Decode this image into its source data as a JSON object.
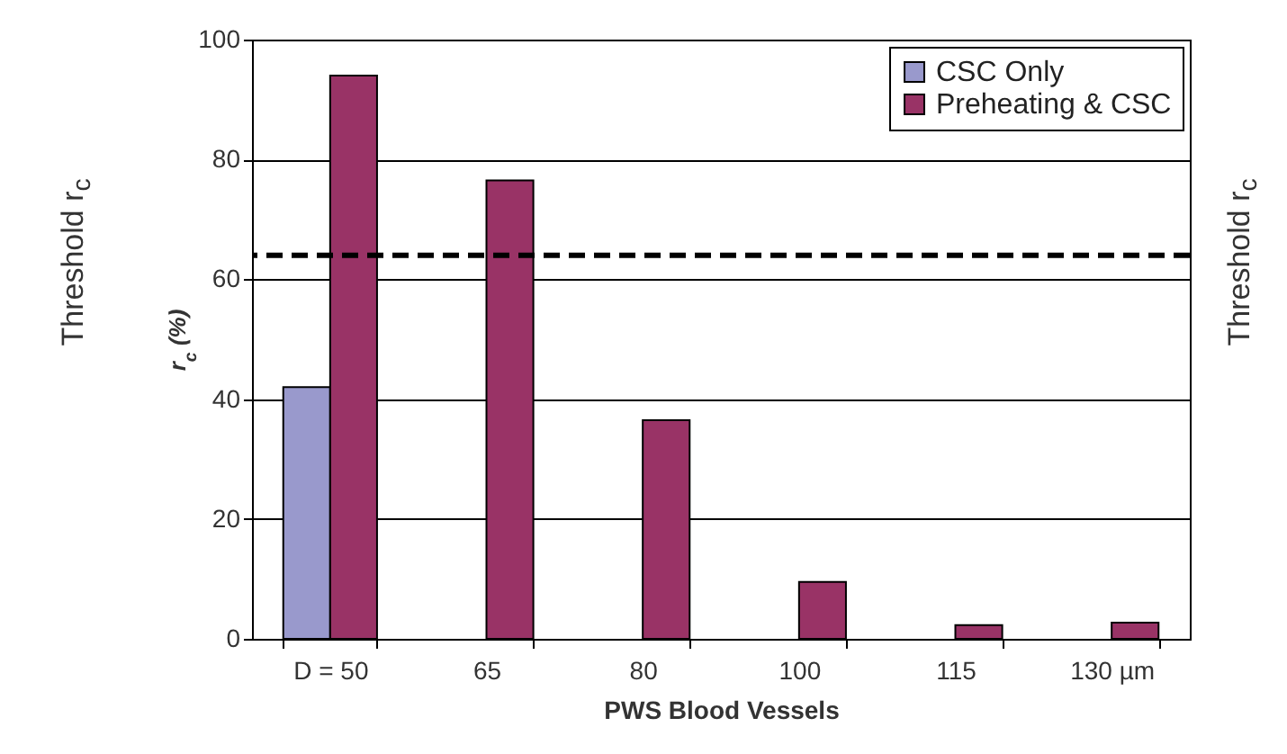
{
  "chart_data": {
    "type": "bar",
    "xlabel": "PWS Blood Vessels",
    "ylabel": "r$_{c}$ (%)",
    "categories": [
      "D = 50",
      "65",
      "80",
      "100",
      "115",
      "130 µm"
    ],
    "series": [
      {
        "name": "CSC Only",
        "color": "#9999cc",
        "values": [
          42,
          null,
          null,
          null,
          null,
          null
        ]
      },
      {
        "name": "Preheating & CSC",
        "color": "#993366",
        "values": [
          94,
          76.5,
          36.5,
          9.5,
          2.3,
          2.7
        ]
      }
    ],
    "ylim": [
      0,
      100
    ],
    "yticks": [
      0,
      20,
      40,
      60,
      80,
      100
    ],
    "grid": "y",
    "legend": "top right",
    "ref_lines": [
      {
        "axis": "y",
        "value": 64,
        "label": "Threshold r$_{c}$",
        "color": "#000000",
        "line_style": "dashed"
      }
    ]
  }
}
